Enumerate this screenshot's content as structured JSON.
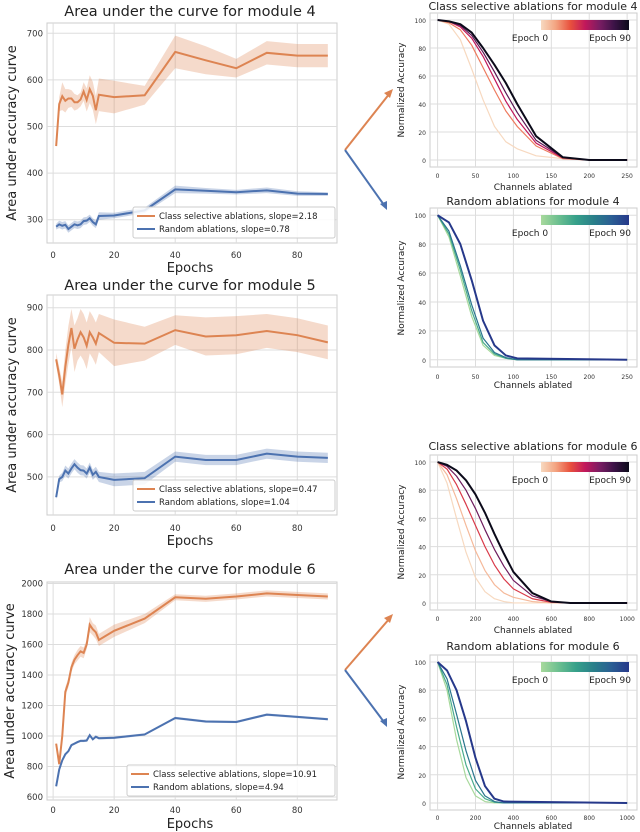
{
  "colors": {
    "class": "#dd8452",
    "random": "#4c72b0",
    "grid": "#dddddd"
  },
  "chart_data": [
    {
      "type": "line",
      "title": "Area under the curve for module 4",
      "xlabel": "Epochs",
      "ylabel": "Area under accuracy curve",
      "xticks": [
        0,
        20,
        40,
        60,
        80
      ],
      "yticks": [
        300,
        400,
        500,
        600,
        700
      ],
      "xlim": [
        -2,
        93
      ],
      "ylim": [
        250,
        722
      ],
      "grid": true,
      "legend": "bottom-right",
      "x": [
        1,
        2,
        3,
        4,
        5,
        6,
        7,
        8,
        9,
        10,
        11,
        12,
        13,
        14,
        15,
        20,
        30,
        40,
        50,
        60,
        70,
        80,
        90
      ],
      "series": [
        {
          "name": "Class selective ablations, slope=2.18",
          "color": "#dd8452",
          "values": [
            458,
            548,
            565,
            555,
            560,
            560,
            552,
            552,
            558,
            575,
            557,
            580,
            566,
            535,
            568,
            563,
            567,
            660,
            642,
            625,
            658,
            652,
            652
          ],
          "spread": [
            0,
            15,
            30,
            25,
            20,
            18,
            18,
            15,
            15,
            20,
            25,
            30,
            30,
            30,
            35,
            35,
            20,
            35,
            30,
            20,
            25,
            25,
            25
          ]
        },
        {
          "name": "Random ablations, slope=0.78",
          "color": "#4c72b0",
          "values": [
            285,
            290,
            287,
            289,
            280,
            285,
            290,
            288,
            290,
            297,
            298,
            303,
            295,
            290,
            308,
            309,
            320,
            365,
            362,
            359,
            363,
            356,
            355
          ],
          "spread": [
            6,
            8,
            8,
            8,
            8,
            8,
            8,
            8,
            8,
            8,
            8,
            8,
            8,
            8,
            8,
            6,
            6,
            8,
            6,
            5,
            6,
            5,
            4
          ]
        }
      ]
    },
    {
      "type": "line",
      "title": "Area under the curve for module 5",
      "xlabel": "Epochs",
      "ylabel": "Area under accuracy curve",
      "xticks": [
        0,
        20,
        40,
        60,
        80
      ],
      "yticks": [
        500,
        600,
        700,
        800,
        900
      ],
      "xlim": [
        -2,
        93
      ],
      "ylim": [
        410,
        930
      ],
      "grid": true,
      "legend": "bottom-right",
      "x": [
        1,
        2,
        3,
        4,
        5,
        6,
        7,
        8,
        9,
        10,
        11,
        12,
        13,
        14,
        15,
        20,
        30,
        40,
        50,
        60,
        70,
        80,
        90
      ],
      "series": [
        {
          "name": "Class selective ablations, slope=0.47",
          "color": "#dd8452",
          "values": [
            778,
            740,
            695,
            760,
            812,
            852,
            803,
            825,
            842,
            830,
            810,
            842,
            830,
            815,
            840,
            817,
            815,
            847,
            832,
            835,
            845,
            835,
            818
          ],
          "spread": [
            15,
            20,
            30,
            40,
            45,
            45,
            55,
            50,
            55,
            55,
            55,
            50,
            50,
            50,
            45,
            55,
            40,
            35,
            45,
            45,
            40,
            40,
            40
          ]
        },
        {
          "name": "Random ablations, slope=1.04",
          "color": "#4c72b0",
          "values": [
            452,
            495,
            500,
            515,
            508,
            520,
            530,
            522,
            516,
            515,
            508,
            522,
            505,
            512,
            500,
            493,
            497,
            548,
            540,
            540,
            555,
            548,
            545
          ],
          "spread": [
            5,
            8,
            10,
            12,
            12,
            12,
            12,
            12,
            12,
            12,
            12,
            12,
            12,
            12,
            12,
            15,
            15,
            12,
            12,
            12,
            12,
            12,
            12
          ]
        }
      ]
    },
    {
      "type": "line",
      "title": "Area under the curve for module 6",
      "xlabel": "Epochs",
      "ylabel": "Area under accuracy curve",
      "xticks": [
        0,
        20,
        40,
        60,
        80
      ],
      "yticks": [
        600,
        800,
        1000,
        1200,
        1400,
        1600,
        1800,
        2000
      ],
      "xlim": [
        -2,
        93
      ],
      "ylim": [
        580,
        2010
      ],
      "grid": true,
      "legend": "bottom-right",
      "x": [
        1,
        2,
        3,
        4,
        5,
        6,
        7,
        8,
        9,
        10,
        11,
        12,
        13,
        14,
        15,
        20,
        30,
        40,
        50,
        60,
        70,
        80,
        90
      ],
      "series": [
        {
          "name": "Class selective ablations, slope=10.91",
          "color": "#dd8452",
          "values": [
            950,
            815,
            1000,
            1290,
            1350,
            1450,
            1500,
            1530,
            1555,
            1545,
            1600,
            1730,
            1700,
            1680,
            1630,
            1690,
            1770,
            1910,
            1900,
            1915,
            1935,
            1925,
            1915
          ],
          "spread": [
            0,
            0,
            30,
            30,
            30,
            30,
            30,
            35,
            35,
            35,
            30,
            50,
            40,
            45,
            40,
            40,
            30,
            20,
            20,
            20,
            20,
            20,
            20
          ]
        },
        {
          "name": "Random ablations, slope=4.94",
          "color": "#4c72b0",
          "values": [
            670,
            780,
            840,
            880,
            900,
            940,
            950,
            960,
            968,
            968,
            970,
            1005,
            978,
            995,
            985,
            988,
            1010,
            1118,
            1095,
            1092,
            1140,
            1125,
            1110
          ],
          "spread": [
            5,
            8,
            8,
            8,
            8,
            8,
            8,
            8,
            8,
            8,
            8,
            10,
            8,
            8,
            8,
            8,
            8,
            8,
            8,
            8,
            8,
            8,
            8
          ]
        }
      ]
    },
    {
      "type": "line",
      "title": "Class selective ablations for module 4",
      "xlabel": "Channels ablated",
      "ylabel": "Normalized Accuracy",
      "xticks": [
        0,
        50,
        100,
        150,
        200,
        250
      ],
      "yticks": [
        0,
        20,
        40,
        60,
        80,
        100
      ],
      "xlim": [
        -10,
        263
      ],
      "ylim": [
        -5,
        105
      ],
      "grid": true,
      "colorbar": {
        "min_label": "Epoch 0",
        "max_label": "Epoch 90",
        "colormap": [
          "#f7d9c0",
          "#f3a481",
          "#e8513d",
          "#c2185b",
          "#7a1d63",
          "#3b1346",
          "#0b0a1a"
        ]
      },
      "x": [
        0,
        15,
        30,
        45,
        60,
        75,
        90,
        105,
        130,
        165,
        200,
        250
      ],
      "series": [
        {
          "epoch_fraction": 0.0,
          "values": [
            100,
            97,
            86,
            65,
            43,
            24,
            13,
            8,
            3,
            1,
            0,
            0
          ]
        },
        {
          "epoch_fraction": 0.25,
          "values": [
            100,
            98,
            93,
            82,
            66,
            50,
            35,
            24,
            10,
            1,
            0,
            0
          ]
        },
        {
          "epoch_fraction": 0.5,
          "values": [
            100,
            99,
            95,
            87,
            74,
            58,
            42,
            29,
            12,
            1.5,
            0,
            0
          ]
        },
        {
          "epoch_fraction": 0.75,
          "values": [
            100,
            99,
            96,
            89,
            77,
            63,
            48,
            34,
            14,
            2,
            0,
            0
          ]
        },
        {
          "epoch_fraction": 1.0,
          "values": [
            100,
            99,
            97,
            91,
            80,
            68,
            55,
            40,
            17,
            2,
            0,
            0
          ]
        }
      ]
    },
    {
      "type": "line",
      "title": "Random ablations for module 4",
      "xlabel": "Channels ablated",
      "ylabel": "Normalized Accuracy",
      "xticks": [
        0,
        50,
        100,
        150,
        200,
        250
      ],
      "yticks": [
        0,
        20,
        40,
        60,
        80,
        100
      ],
      "xlim": [
        -10,
        263
      ],
      "ylim": [
        -5,
        105
      ],
      "grid": true,
      "colorbar": {
        "min_label": "Epoch 0",
        "max_label": "Epoch 90",
        "colormap": [
          "#a8d99c",
          "#6cbf90",
          "#36a08a",
          "#2a7f8a",
          "#2b5f94",
          "#26388a"
        ]
      },
      "x": [
        0,
        15,
        30,
        45,
        60,
        75,
        90,
        105,
        250
      ],
      "series": [
        {
          "epoch_fraction": 0.0,
          "values": [
            100,
            85,
            58,
            30,
            10,
            3,
            1,
            0,
            0
          ]
        },
        {
          "epoch_fraction": 0.33,
          "values": [
            100,
            87,
            62,
            34,
            12,
            4,
            1,
            0,
            0
          ]
        },
        {
          "epoch_fraction": 0.66,
          "values": [
            100,
            89,
            65,
            38,
            15,
            5,
            1.5,
            0,
            0
          ]
        },
        {
          "epoch_fraction": 1.0,
          "values": [
            100,
            95,
            80,
            55,
            27,
            10,
            3,
            1,
            0
          ]
        }
      ]
    },
    {
      "type": "line",
      "title": "Class selective ablations for module 6",
      "xlabel": "Channels ablated",
      "ylabel": "Normalized Accuracy",
      "xticks": [
        0,
        200,
        400,
        600,
        800,
        1000
      ],
      "yticks": [
        0,
        20,
        40,
        60,
        80,
        100
      ],
      "xlim": [
        -40,
        1052
      ],
      "ylim": [
        -5,
        105
      ],
      "grid": true,
      "colorbar": {
        "min_label": "Epoch 0",
        "max_label": "Epoch 90",
        "colormap": [
          "#f7d9c0",
          "#f3a481",
          "#e8513d",
          "#c2185b",
          "#7a1d63",
          "#3b1346",
          "#0b0a1a"
        ]
      },
      "x": [
        0,
        50,
        100,
        150,
        200,
        250,
        300,
        350,
        400,
        500,
        600,
        700,
        1000
      ],
      "series": [
        {
          "epoch_fraction": 0.0,
          "values": [
            100,
            85,
            60,
            36,
            18,
            8,
            3,
            1,
            0,
            0,
            0,
            0,
            0
          ]
        },
        {
          "epoch_fraction": 0.1,
          "values": [
            100,
            91,
            74,
            55,
            37,
            23,
            13,
            7,
            4,
            1,
            0,
            0,
            0
          ]
        },
        {
          "epoch_fraction": 0.4,
          "values": [
            100,
            95,
            84,
            70,
            55,
            40,
            27,
            17,
            10,
            3,
            0.5,
            0,
            0
          ]
        },
        {
          "epoch_fraction": 0.7,
          "values": [
            100,
            97,
            90,
            80,
            67,
            52,
            38,
            26,
            16,
            5,
            1,
            0,
            0
          ]
        },
        {
          "epoch_fraction": 1.0,
          "values": [
            100,
            98,
            94,
            87,
            77,
            64,
            49,
            35,
            22,
            7,
            1,
            0,
            0
          ]
        }
      ]
    },
    {
      "type": "line",
      "title": "Random ablations for module 6",
      "xlabel": "Channels ablated",
      "ylabel": "Normalized Accuracy",
      "xticks": [
        0,
        200,
        400,
        600,
        800,
        1000
      ],
      "yticks": [
        0,
        20,
        40,
        60,
        80,
        100
      ],
      "xlim": [
        -40,
        1052
      ],
      "ylim": [
        -5,
        105
      ],
      "grid": true,
      "colorbar": {
        "min_label": "Epoch 0",
        "max_label": "Epoch 90",
        "colormap": [
          "#a8d99c",
          "#6cbf90",
          "#36a08a",
          "#2a7f8a",
          "#2b5f94",
          "#26388a"
        ]
      },
      "x": [
        0,
        50,
        100,
        150,
        200,
        250,
        300,
        350,
        1000
      ],
      "series": [
        {
          "epoch_fraction": 0.0,
          "values": [
            100,
            80,
            45,
            18,
            5,
            1,
            0,
            0,
            0
          ]
        },
        {
          "epoch_fraction": 0.33,
          "values": [
            100,
            84,
            54,
            27,
            10,
            3,
            0.5,
            0,
            0
          ]
        },
        {
          "epoch_fraction": 0.66,
          "values": [
            100,
            88,
            63,
            37,
            16,
            5,
            1,
            0,
            0
          ]
        },
        {
          "epoch_fraction": 1.0,
          "values": [
            100,
            94,
            80,
            58,
            32,
            12,
            3,
            1,
            0
          ]
        }
      ]
    }
  ]
}
